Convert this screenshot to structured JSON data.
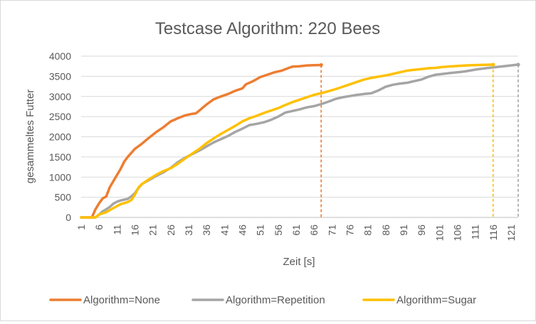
{
  "chart_data": {
    "type": "line",
    "title": "Testcase Algorithm: 220 Bees",
    "xlabel": "Zeit [s]",
    "ylabel": "gesammeltes Futter",
    "ylim": [
      0,
      4000
    ],
    "yticks": [
      0,
      500,
      1000,
      1500,
      2000,
      2500,
      3000,
      3500,
      4000
    ],
    "xlim": [
      1,
      123
    ],
    "xticks": [
      1,
      6,
      11,
      16,
      21,
      26,
      31,
      36,
      41,
      46,
      51,
      56,
      61,
      66,
      71,
      76,
      81,
      86,
      91,
      96,
      101,
      106,
      111,
      116,
      121
    ],
    "grid": "horizontal",
    "legend_position": "bottom",
    "series": [
      {
        "name": "Algorithm=None",
        "color": "#ed7d31",
        "end_x": 68,
        "points": [
          [
            1,
            0
          ],
          [
            4,
            0
          ],
          [
            5,
            200
          ],
          [
            6,
            350
          ],
          [
            7,
            470
          ],
          [
            8,
            520
          ],
          [
            9,
            750
          ],
          [
            10,
            900
          ],
          [
            11,
            1050
          ],
          [
            12,
            1200
          ],
          [
            13,
            1380
          ],
          [
            14,
            1500
          ],
          [
            15,
            1600
          ],
          [
            16,
            1700
          ],
          [
            18,
            1830
          ],
          [
            20,
            1980
          ],
          [
            22,
            2120
          ],
          [
            24,
            2240
          ],
          [
            26,
            2380
          ],
          [
            28,
            2460
          ],
          [
            30,
            2530
          ],
          [
            32,
            2570
          ],
          [
            33,
            2580
          ],
          [
            34,
            2650
          ],
          [
            36,
            2800
          ],
          [
            38,
            2930
          ],
          [
            40,
            3000
          ],
          [
            42,
            3060
          ],
          [
            44,
            3140
          ],
          [
            46,
            3200
          ],
          [
            47,
            3300
          ],
          [
            49,
            3380
          ],
          [
            51,
            3480
          ],
          [
            53,
            3540
          ],
          [
            55,
            3600
          ],
          [
            57,
            3640
          ],
          [
            59,
            3710
          ],
          [
            60,
            3740
          ],
          [
            62,
            3750
          ],
          [
            64,
            3770
          ],
          [
            66,
            3775
          ],
          [
            68,
            3780
          ]
        ]
      },
      {
        "name": "Algorithm=Repetition",
        "color": "#a5a5a5",
        "end_x": 123,
        "points": [
          [
            1,
            0
          ],
          [
            5,
            0
          ],
          [
            6,
            70
          ],
          [
            7,
            150
          ],
          [
            8,
            200
          ],
          [
            9,
            260
          ],
          [
            10,
            340
          ],
          [
            11,
            390
          ],
          [
            12,
            420
          ],
          [
            13,
            440
          ],
          [
            14,
            460
          ],
          [
            15,
            520
          ],
          [
            16,
            600
          ],
          [
            17,
            730
          ],
          [
            18,
            830
          ],
          [
            20,
            930
          ],
          [
            22,
            1030
          ],
          [
            24,
            1120
          ],
          [
            26,
            1230
          ],
          [
            28,
            1370
          ],
          [
            30,
            1480
          ],
          [
            32,
            1570
          ],
          [
            34,
            1660
          ],
          [
            36,
            1760
          ],
          [
            38,
            1860
          ],
          [
            40,
            1940
          ],
          [
            42,
            2020
          ],
          [
            44,
            2120
          ],
          [
            46,
            2200
          ],
          [
            48,
            2290
          ],
          [
            50,
            2320
          ],
          [
            52,
            2360
          ],
          [
            54,
            2420
          ],
          [
            56,
            2500
          ],
          [
            58,
            2600
          ],
          [
            60,
            2640
          ],
          [
            62,
            2680
          ],
          [
            64,
            2730
          ],
          [
            66,
            2760
          ],
          [
            68,
            2810
          ],
          [
            70,
            2870
          ],
          [
            72,
            2940
          ],
          [
            74,
            2980
          ],
          [
            76,
            3010
          ],
          [
            78,
            3040
          ],
          [
            80,
            3060
          ],
          [
            82,
            3080
          ],
          [
            84,
            3150
          ],
          [
            86,
            3240
          ],
          [
            88,
            3290
          ],
          [
            90,
            3320
          ],
          [
            92,
            3340
          ],
          [
            94,
            3380
          ],
          [
            96,
            3420
          ],
          [
            98,
            3490
          ],
          [
            100,
            3540
          ],
          [
            102,
            3560
          ],
          [
            104,
            3580
          ],
          [
            106,
            3600
          ],
          [
            108,
            3620
          ],
          [
            110,
            3650
          ],
          [
            112,
            3680
          ],
          [
            114,
            3700
          ],
          [
            116,
            3720
          ],
          [
            118,
            3740
          ],
          [
            120,
            3760
          ],
          [
            122,
            3780
          ],
          [
            123,
            3790
          ]
        ]
      },
      {
        "name": "Algorithm=Sugar",
        "color": "#ffc000",
        "end_x": 116,
        "points": [
          [
            1,
            0
          ],
          [
            5,
            0
          ],
          [
            6,
            70
          ],
          [
            8,
            130
          ],
          [
            10,
            230
          ],
          [
            12,
            330
          ],
          [
            14,
            380
          ],
          [
            15,
            430
          ],
          [
            16,
            560
          ],
          [
            17,
            740
          ],
          [
            18,
            830
          ],
          [
            20,
            950
          ],
          [
            22,
            1060
          ],
          [
            24,
            1150
          ],
          [
            26,
            1220
          ],
          [
            28,
            1330
          ],
          [
            30,
            1460
          ],
          [
            32,
            1580
          ],
          [
            34,
            1700
          ],
          [
            36,
            1840
          ],
          [
            38,
            1960
          ],
          [
            40,
            2070
          ],
          [
            42,
            2170
          ],
          [
            44,
            2270
          ],
          [
            46,
            2380
          ],
          [
            48,
            2460
          ],
          [
            50,
            2520
          ],
          [
            52,
            2590
          ],
          [
            54,
            2650
          ],
          [
            56,
            2710
          ],
          [
            58,
            2790
          ],
          [
            60,
            2860
          ],
          [
            62,
            2920
          ],
          [
            64,
            2980
          ],
          [
            66,
            3040
          ],
          [
            68,
            3080
          ],
          [
            70,
            3130
          ],
          [
            72,
            3180
          ],
          [
            74,
            3240
          ],
          [
            76,
            3300
          ],
          [
            78,
            3360
          ],
          [
            80,
            3420
          ],
          [
            82,
            3460
          ],
          [
            84,
            3490
          ],
          [
            86,
            3520
          ],
          [
            88,
            3560
          ],
          [
            90,
            3600
          ],
          [
            92,
            3640
          ],
          [
            94,
            3660
          ],
          [
            96,
            3680
          ],
          [
            98,
            3700
          ],
          [
            100,
            3710
          ],
          [
            102,
            3730
          ],
          [
            104,
            3745
          ],
          [
            106,
            3755
          ],
          [
            108,
            3765
          ],
          [
            110,
            3775
          ],
          [
            112,
            3780
          ],
          [
            114,
            3785
          ],
          [
            116,
            3790
          ]
        ]
      }
    ]
  }
}
